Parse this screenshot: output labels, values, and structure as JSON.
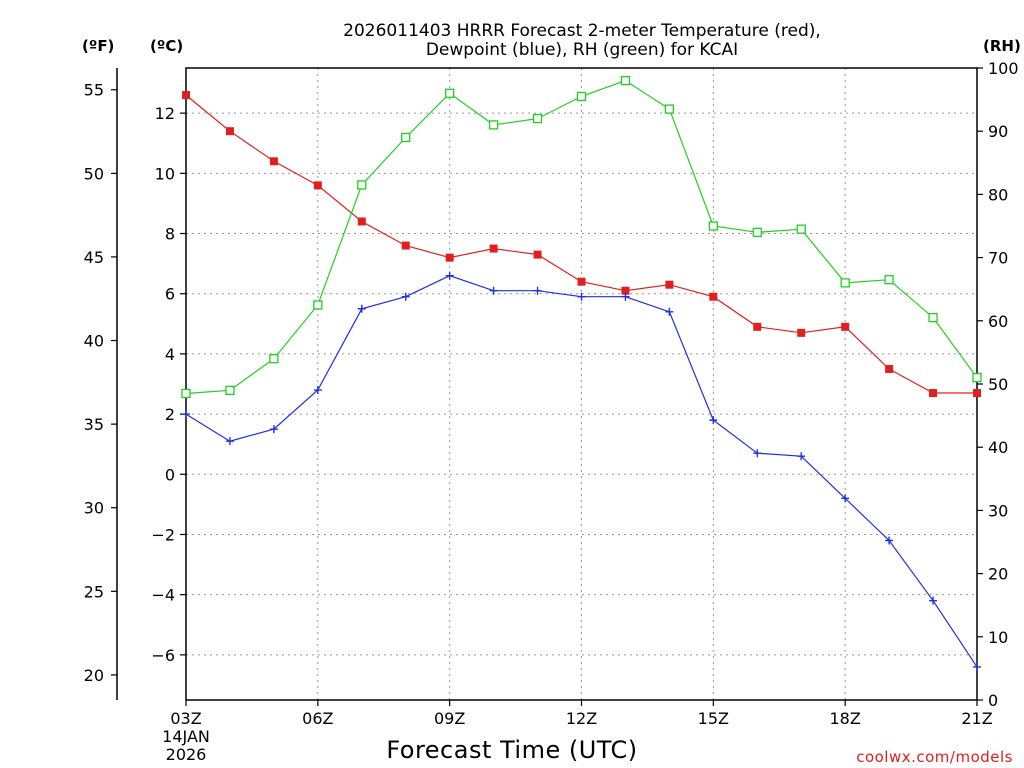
{
  "chart_data": {
    "type": "line",
    "title_line1": "2026011403 HRRR Forecast 2-meter Temperature (red),",
    "title_line2": "Dewpoint (blue), RH (green) for KCAI",
    "left_unit_f": "(ºF)",
    "left_unit_c": "(ºC)",
    "right_unit": "(RH)",
    "xlabel": "Forecast Time (UTC)",
    "credit": "coolwx.com/models",
    "date_day": "14JAN",
    "date_year": "2026",
    "x_ticks": [
      "03Z",
      "06Z",
      "09Z",
      "12Z",
      "15Z",
      "18Z",
      "21Z"
    ],
    "x_tick_hours": [
      3,
      6,
      9,
      12,
      15,
      18,
      21
    ],
    "x": [
      3,
      4,
      5,
      6,
      7,
      8,
      9,
      10,
      11,
      12,
      13,
      14,
      15,
      16,
      17,
      18,
      19,
      20,
      21
    ],
    "xlim": [
      3,
      21
    ],
    "ylim_c": [
      -7.5,
      13.5
    ],
    "y_ticks_c": [
      "12",
      "10",
      "8",
      "6",
      "4",
      "2",
      "0",
      "−2",
      "−4",
      "−6"
    ],
    "y_tick_values_c": [
      12,
      10,
      8,
      6,
      4,
      2,
      0,
      -2,
      -4,
      -6
    ],
    "y_ticks_f": [
      "55",
      "50",
      "45",
      "40",
      "35",
      "30",
      "25",
      "20"
    ],
    "y_tick_values_f": [
      55,
      50,
      45,
      40,
      35,
      30,
      25,
      20
    ],
    "ylim_rh": [
      0,
      100
    ],
    "y_ticks_rh": [
      "100",
      "90",
      "80",
      "70",
      "60",
      "50",
      "40",
      "30",
      "20",
      "10",
      "0"
    ],
    "y_tick_values_rh": [
      100,
      90,
      80,
      70,
      60,
      50,
      40,
      30,
      20,
      10,
      0
    ],
    "series": [
      {
        "name": "Temperature",
        "axis": "c",
        "color": "#e02020",
        "marker": "filled-square",
        "values": [
          12.6,
          11.4,
          10.4,
          9.6,
          8.4,
          7.6,
          7.2,
          7.5,
          7.3,
          6.4,
          6.1,
          6.3,
          5.9,
          4.9,
          4.7,
          4.9,
          3.5,
          2.7,
          2.7
        ]
      },
      {
        "name": "Dewpoint",
        "axis": "c",
        "color": "#2030e0",
        "marker": "plus",
        "values": [
          2.0,
          1.1,
          1.5,
          2.8,
          5.5,
          5.9,
          6.6,
          6.1,
          6.1,
          5.9,
          5.9,
          5.4,
          1.8,
          0.7,
          0.6,
          -0.8,
          -2.2,
          -4.2,
          -6.4
        ]
      },
      {
        "name": "RH",
        "axis": "rh",
        "color": "#20d020",
        "marker": "open-square",
        "values": [
          48.5,
          49.0,
          54.0,
          62.5,
          81.5,
          89.0,
          96.0,
          91.0,
          92.0,
          95.5,
          98.0,
          93.5,
          75.0,
          74.0,
          74.5,
          66.0,
          66.5,
          60.5,
          51.0
        ]
      }
    ]
  }
}
